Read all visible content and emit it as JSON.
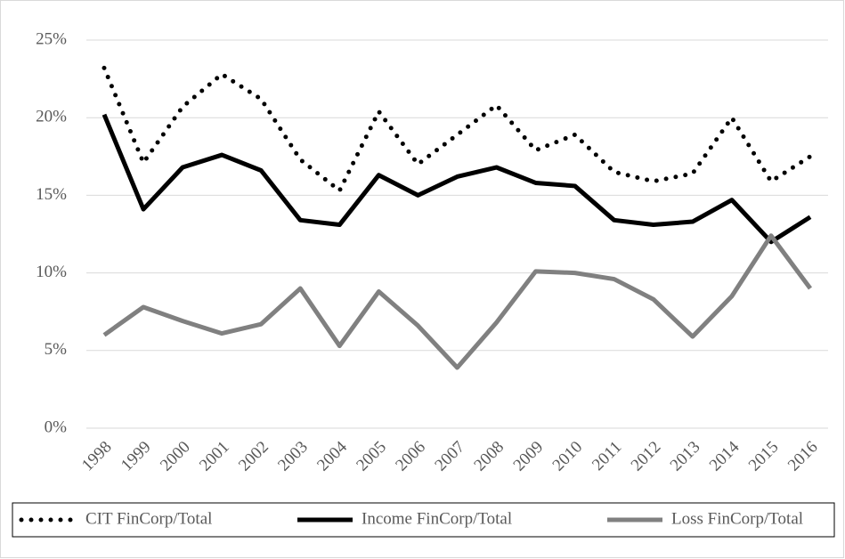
{
  "chart_data": {
    "type": "line",
    "categories": [
      "1998",
      "1999",
      "2000",
      "2001",
      "2002",
      "2003",
      "2004",
      "2005",
      "2006",
      "2007",
      "2008",
      "2009",
      "2010",
      "2011",
      "2012",
      "2013",
      "2014",
      "2015",
      "2016"
    ],
    "series": [
      {
        "name": "CIT FinCorp/Total",
        "color": "#000000",
        "dash": "dotted",
        "values": [
          23.2,
          17.1,
          20.7,
          22.8,
          21.2,
          17.3,
          15.3,
          20.4,
          17.0,
          18.9,
          20.8,
          17.9,
          18.9,
          16.5,
          15.9,
          16.4,
          20.0,
          15.9,
          17.5
        ]
      },
      {
        "name": "Income FinCorp/Total",
        "color": "#000000",
        "dash": "solid",
        "values": [
          20.2,
          14.1,
          16.8,
          17.6,
          16.6,
          13.4,
          13.1,
          16.3,
          15.0,
          16.2,
          16.8,
          15.8,
          15.6,
          13.4,
          13.1,
          13.3,
          14.7,
          12.0,
          13.6
        ]
      },
      {
        "name": "Loss FinCorp/Total",
        "color": "#808080",
        "dash": "solid",
        "values": [
          6.0,
          7.8,
          6.9,
          6.1,
          6.7,
          9.0,
          5.3,
          8.8,
          6.6,
          3.9,
          6.8,
          10.1,
          10.0,
          9.6,
          8.3,
          5.9,
          8.5,
          12.4,
          9.0
        ]
      }
    ],
    "ylim": [
      0,
      25
    ],
    "yticks": [
      {
        "value": 0,
        "label": "0%"
      },
      {
        "value": 5,
        "label": "5%"
      },
      {
        "value": 10,
        "label": "10%"
      },
      {
        "value": 15,
        "label": "15%"
      },
      {
        "value": 20,
        "label": "20%"
      },
      {
        "value": 25,
        "label": "25%"
      }
    ],
    "grid": true,
    "legend": "bottom"
  }
}
